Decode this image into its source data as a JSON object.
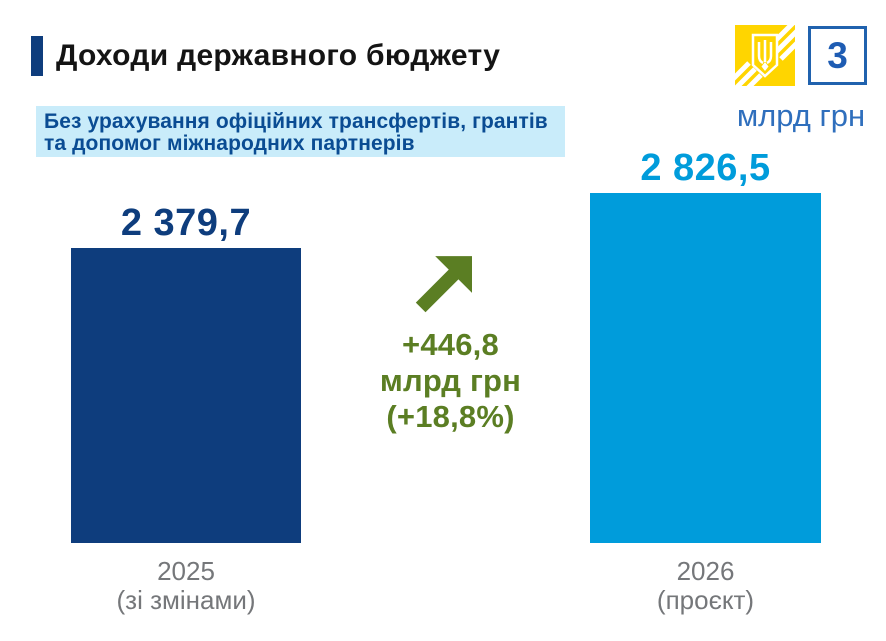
{
  "slide": {
    "number": "3",
    "unit": "млрд грн"
  },
  "header": {
    "title": "Доходи державного бюджету",
    "note_line1": "Без урахування офіційних трансфертів, грантів",
    "note_line2": "та допомог міжнародних партнерів"
  },
  "chart_data": {
    "type": "bar",
    "title": "Доходи державного бюджету",
    "subtitle": "Без урахування офіційних трансфертів, грантів та допомог міжнародних партнерів",
    "unit": "млрд грн",
    "categories": [
      "2025 (зі змінами)",
      "2026 (проєкт)"
    ],
    "values": [
      2379.7,
      2826.5
    ],
    "value_labels": [
      "2 379,7",
      "2 826,5"
    ],
    "bar_colors": [
      "#0e3d7d",
      "#009cdb"
    ],
    "ylim": [
      0,
      2900
    ],
    "grid": false,
    "legend": false,
    "annotation": {
      "change_abs": 446.8,
      "change_pct": 18.8,
      "direction": "up"
    }
  },
  "bars": [
    {
      "value_label": "2 379,7",
      "year": "2025",
      "note": "(зі змінами)"
    },
    {
      "value_label": "2 826,5",
      "year": "2026",
      "note": "(проєкт)"
    }
  ],
  "delta": {
    "line1": "+446,8",
    "line2": "млрд грн",
    "line3": "(+18,8%)"
  },
  "colors": {
    "navy": "#0e3d7d",
    "bright_blue": "#009cdb",
    "green": "#5b7e23",
    "note_bg": "#c9ecfa",
    "note_text": "#0a4c93",
    "unit_text": "#2f6fbd",
    "slide_number_blue": "#1e5cb3",
    "emblem_yellow": "#ffd500",
    "axis_gray": "#75777a"
  }
}
